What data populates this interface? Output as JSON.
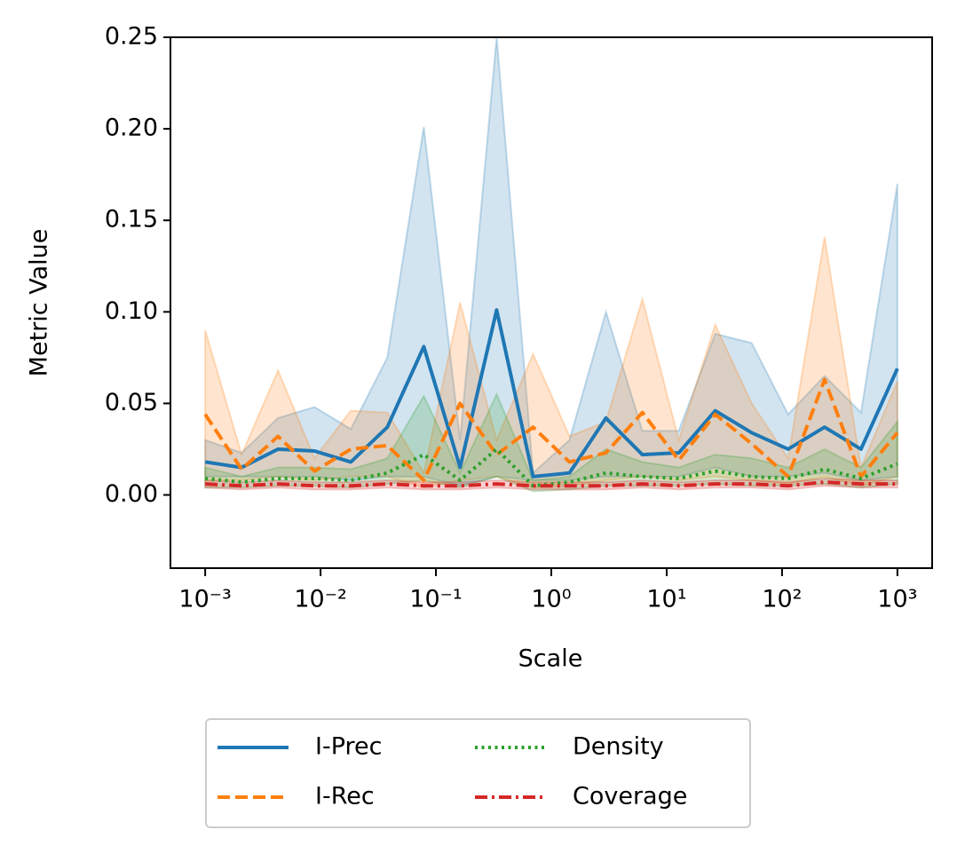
{
  "chart_data": {
    "type": "line",
    "xlabel": "Scale",
    "ylabel": "Metric Value",
    "xscale": "log",
    "x": [
      0.001,
      0.00207,
      0.00428,
      0.00886,
      0.0183,
      0.0379,
      0.0785,
      0.162,
      0.336,
      0.695,
      1.438,
      2.976,
      6.158,
      12.74,
      26.37,
      54.56,
      112.9,
      233.6,
      483.3,
      1000
    ],
    "xlim": [
      0.0005,
      2000
    ],
    "xticks": [
      {
        "value": 0.001,
        "label": "10⁻³"
      },
      {
        "value": 0.01,
        "label": "10⁻²"
      },
      {
        "value": 0.1,
        "label": "10⁻¹"
      },
      {
        "value": 1,
        "label": "10⁰"
      },
      {
        "value": 10,
        "label": "10¹"
      },
      {
        "value": 100,
        "label": "10²"
      },
      {
        "value": 1000,
        "label": "10³"
      }
    ],
    "ylim": [
      -0.04,
      0.25
    ],
    "yticks": [
      {
        "value": 0,
        "label": "0.00"
      },
      {
        "value": 0.05,
        "label": "0.05"
      },
      {
        "value": 0.1,
        "label": "0.10"
      },
      {
        "value": 0.15,
        "label": "0.15"
      },
      {
        "value": 0.2,
        "label": "0.20"
      },
      {
        "value": 0.25,
        "label": "0.25"
      }
    ],
    "grid": false,
    "legend": "below",
    "series": [
      {
        "name": "I-Prec",
        "color": "#1f77b4",
        "dash": "solid",
        "values": [
          0.018,
          0.015,
          0.025,
          0.024,
          0.018,
          0.037,
          0.081,
          0.015,
          0.101,
          0.01,
          0.012,
          0.042,
          0.022,
          0.023,
          0.046,
          0.034,
          0.025,
          0.037,
          0.025,
          0.069
        ],
        "upper": [
          0.03,
          0.023,
          0.042,
          0.048,
          0.036,
          0.075,
          0.201,
          0.03,
          0.25,
          0.012,
          0.03,
          0.1,
          0.035,
          0.035,
          0.088,
          0.083,
          0.044,
          0.065,
          0.045,
          0.17
        ],
        "lower": [
          0.01,
          0.01,
          0.01,
          0.01,
          0.008,
          0.01,
          0.01,
          0.005,
          0.01,
          0.008,
          0.008,
          0.01,
          0.01,
          0.01,
          0.015,
          0.01,
          0.01,
          0.012,
          0.008,
          0.01
        ]
      },
      {
        "name": "I-Rec",
        "color": "#ff7f0e",
        "dash": "dashed",
        "values": [
          0.044,
          0.014,
          0.032,
          0.013,
          0.025,
          0.027,
          0.008,
          0.05,
          0.022,
          0.037,
          0.018,
          0.023,
          0.045,
          0.019,
          0.044,
          0.028,
          0.01,
          0.063,
          0.01,
          0.034
        ],
        "upper": [
          0.09,
          0.022,
          0.068,
          0.02,
          0.046,
          0.045,
          0.012,
          0.105,
          0.03,
          0.077,
          0.032,
          0.04,
          0.107,
          0.03,
          0.093,
          0.05,
          0.02,
          0.141,
          0.015,
          0.062
        ],
        "lower": [
          0.008,
          0.008,
          0.01,
          0.008,
          0.01,
          0.01,
          0.004,
          0.008,
          0.01,
          0.004,
          0.005,
          0.008,
          0.01,
          0.008,
          0.01,
          0.008,
          0.006,
          0.01,
          0.005,
          0.01
        ]
      },
      {
        "name": "Density",
        "color": "#2ca02c",
        "dash": "dotted",
        "values": [
          0.009,
          0.007,
          0.009,
          0.009,
          0.008,
          0.012,
          0.022,
          0.008,
          0.025,
          0.005,
          0.007,
          0.012,
          0.01,
          0.009,
          0.013,
          0.01,
          0.009,
          0.014,
          0.009,
          0.017
        ],
        "upper": [
          0.015,
          0.01,
          0.015,
          0.015,
          0.014,
          0.02,
          0.054,
          0.012,
          0.055,
          0.008,
          0.01,
          0.025,
          0.018,
          0.015,
          0.022,
          0.02,
          0.015,
          0.025,
          0.015,
          0.04
        ],
        "lower": [
          0.004,
          0.004,
          0.005,
          0.005,
          0.004,
          0.006,
          0.008,
          0.004,
          0.01,
          0.002,
          0.003,
          0.005,
          0.005,
          0.005,
          0.006,
          0.005,
          0.005,
          0.006,
          0.004,
          0.006
        ]
      },
      {
        "name": "Coverage",
        "color": "#d62728",
        "dash": "dashdot",
        "values": [
          0.006,
          0.005,
          0.006,
          0.005,
          0.005,
          0.006,
          0.005,
          0.005,
          0.006,
          0.005,
          0.005,
          0.005,
          0.006,
          0.005,
          0.006,
          0.006,
          0.005,
          0.007,
          0.006,
          0.006
        ],
        "upper": [
          0.008,
          0.007,
          0.008,
          0.007,
          0.007,
          0.008,
          0.007,
          0.007,
          0.008,
          0.007,
          0.007,
          0.007,
          0.008,
          0.007,
          0.008,
          0.008,
          0.007,
          0.009,
          0.008,
          0.008
        ],
        "lower": [
          0.004,
          0.003,
          0.004,
          0.003,
          0.003,
          0.004,
          0.003,
          0.003,
          0.004,
          0.003,
          0.003,
          0.003,
          0.004,
          0.003,
          0.004,
          0.004,
          0.003,
          0.005,
          0.004,
          0.004
        ]
      }
    ]
  }
}
